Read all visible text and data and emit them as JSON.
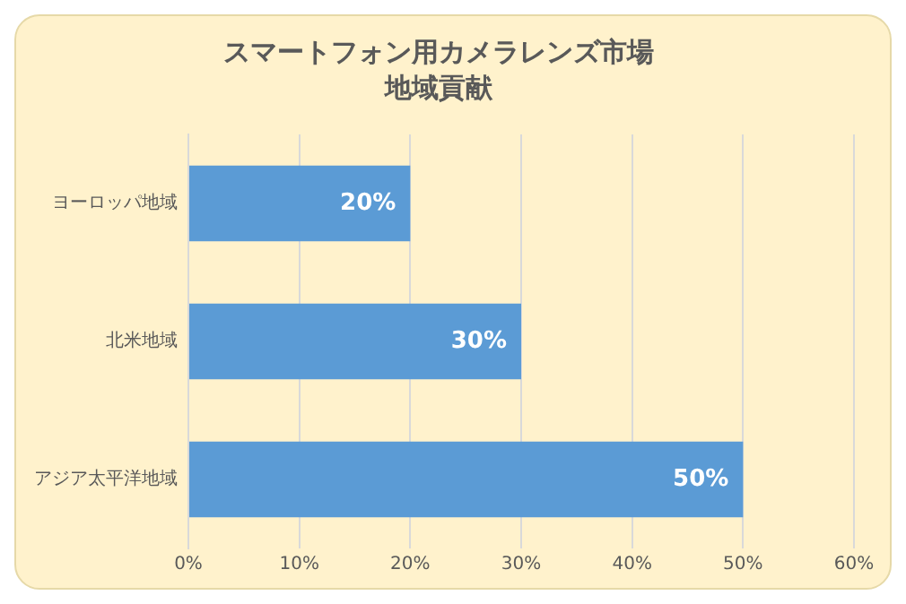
{
  "chart_data": {
    "type": "bar",
    "orientation": "horizontal",
    "title": "スマートフォン用カメラレンズ市場",
    "subtitle": "地域貢献",
    "categories": [
      "ヨーロッパ地域",
      "北米地域",
      "アジア太平洋地域"
    ],
    "values": [
      20,
      30,
      50
    ],
    "color": "#5b9bd5",
    "value_labels": [
      "20%",
      "30%",
      "50%"
    ],
    "xlim": [
      0,
      60
    ],
    "xticks": [
      {
        "value": 0,
        "label": "0%"
      },
      {
        "value": 10,
        "label": "10%"
      },
      {
        "value": 20,
        "label": "20%"
      },
      {
        "value": 30,
        "label": "30%"
      },
      {
        "value": 40,
        "label": "40%"
      },
      {
        "value": 50,
        "label": "50%"
      },
      {
        "value": 60,
        "label": "60%"
      }
    ],
    "grid": "x",
    "legend": false
  }
}
